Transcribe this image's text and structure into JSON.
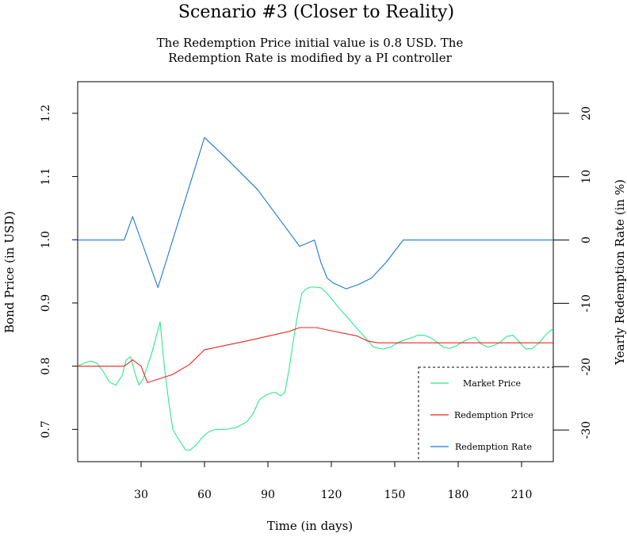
{
  "chart_data": {
    "type": "line",
    "title": "Scenario #3 (Closer to Reality)",
    "subtitle_lines": [
      "The Redemption Price initial value is 0.8 USD. The",
      "Redemption Rate is modified by a PI controller"
    ],
    "xlabel": "Time (in days)",
    "ylabel_left": "Bond Price (in USD)",
    "ylabel_right": "Yearly Redemption Rate (in %)",
    "xlim": [
      0,
      225
    ],
    "ylim_left": [
      0.649,
      1.25
    ],
    "ylim_right": [
      -35,
      25
    ],
    "x_ticks": [
      "30",
      "60",
      "90",
      "120",
      "150",
      "180",
      "210"
    ],
    "y_ticks_left": [
      "0.7",
      "0.8",
      "0.9",
      "1.0",
      "1.1",
      "1.2"
    ],
    "y_ticks_right": [
      "-30",
      "-20",
      "-10",
      "0",
      "10",
      "20"
    ],
    "legend_position": "bottom-right",
    "grid": false,
    "series": [
      {
        "name": "Market Price",
        "axis": "left",
        "color": "#2ee88a",
        "x": [
          0,
          3,
          6,
          9,
          12,
          15,
          18,
          21,
          23,
          25,
          27,
          29,
          31,
          33,
          35,
          37,
          39,
          41,
          43,
          45,
          48,
          51,
          53,
          56,
          59,
          62,
          65,
          70,
          75,
          80,
          83,
          86,
          89,
          92,
          94,
          96,
          98,
          100,
          102,
          104,
          106,
          108,
          110,
          112,
          115,
          118,
          121,
          124,
          128,
          132,
          136,
          140,
          144,
          148,
          152,
          155,
          158,
          161,
          164,
          167,
          170,
          173,
          176,
          179,
          182,
          185,
          188,
          191,
          194,
          197,
          200,
          203,
          206,
          209,
          212,
          215,
          218,
          221,
          225
        ],
        "values": [
          0.8,
          0.805,
          0.808,
          0.805,
          0.792,
          0.775,
          0.77,
          0.785,
          0.81,
          0.815,
          0.79,
          0.77,
          0.78,
          0.8,
          0.82,
          0.845,
          0.87,
          0.8,
          0.745,
          0.7,
          0.683,
          0.668,
          0.667,
          0.675,
          0.688,
          0.696,
          0.7,
          0.7,
          0.703,
          0.712,
          0.725,
          0.747,
          0.754,
          0.758,
          0.758,
          0.753,
          0.758,
          0.795,
          0.84,
          0.88,
          0.915,
          0.922,
          0.925,
          0.925,
          0.924,
          0.915,
          0.903,
          0.89,
          0.876,
          0.86,
          0.845,
          0.83,
          0.827,
          0.83,
          0.838,
          0.842,
          0.845,
          0.849,
          0.849,
          0.845,
          0.838,
          0.83,
          0.828,
          0.832,
          0.838,
          0.843,
          0.846,
          0.835,
          0.83,
          0.833,
          0.838,
          0.847,
          0.849,
          0.838,
          0.827,
          0.828,
          0.836,
          0.848,
          0.86
        ]
      },
      {
        "name": "Redemption Price",
        "axis": "left",
        "color": "#e8261e",
        "x": [
          0,
          22,
          26,
          30,
          33,
          45,
          53,
          60,
          80,
          100,
          105,
          113,
          120,
          132,
          137,
          142,
          160,
          190,
          225
        ],
        "values": [
          0.8,
          0.8,
          0.81,
          0.8,
          0.774,
          0.787,
          0.803,
          0.826,
          0.84,
          0.855,
          0.861,
          0.861,
          0.856,
          0.848,
          0.84,
          0.837,
          0.837,
          0.837,
          0.837
        ]
      },
      {
        "name": "Redemption Rate",
        "axis": "right",
        "color": "#1a79d6",
        "x": [
          0,
          22,
          26,
          38,
          60,
          70,
          85,
          95,
          105,
          112,
          115,
          118,
          121,
          127,
          133,
          139,
          146,
          154,
          170,
          200,
          225
        ],
        "values": [
          0,
          0,
          3.7,
          -7.5,
          16.2,
          13,
          8,
          3.5,
          -1,
          0,
          -3.5,
          -6.0,
          -6.8,
          -7.7,
          -7.0,
          -6.0,
          -3.5,
          0,
          0,
          0,
          0
        ]
      }
    ]
  }
}
